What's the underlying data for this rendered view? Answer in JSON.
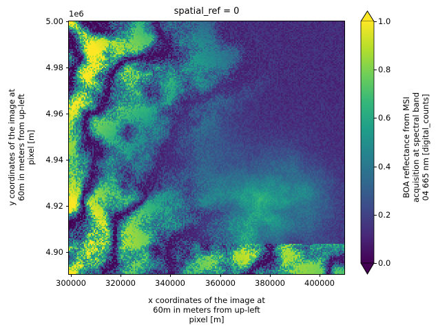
{
  "figure": {
    "title": "spatial_ref = 0",
    "y_offset_text": "1e6"
  },
  "axes": {
    "xlabel_lines": [
      "x coordinates of the image at",
      "60m in meters from up-left",
      "pixel [m]"
    ],
    "ylabel_lines": [
      "y coordinates of the image at",
      "60m in meters from up-left",
      "pixel [m]"
    ],
    "xticks": [
      "300000",
      "320000",
      "340000",
      "360000",
      "380000",
      "400000"
    ],
    "yticks": [
      "5.00",
      "4.98",
      "4.96",
      "4.94",
      "4.92",
      "4.90"
    ]
  },
  "colorbar": {
    "label_lines": [
      "BOA reflectance from MSI",
      "acquisition at spectral band",
      "04 665 nm [digital_counts]"
    ],
    "ticks": [
      "1.0",
      "0.8",
      "0.6",
      "0.4",
      "0.2",
      "0.0"
    ],
    "extend": "both",
    "colormap": "viridis",
    "colors": [
      "#440154",
      "#482878",
      "#3e4989",
      "#31688e",
      "#26828e",
      "#1f9e89",
      "#35b779",
      "#6ece58",
      "#b5de2b",
      "#fde725"
    ]
  },
  "chart_data": {
    "type": "heatmap",
    "title": "spatial_ref = 0",
    "xlabel": "x coordinates of the image at 60m in meters from up-left pixel [m]",
    "ylabel": "y coordinates of the image at 60m in meters from up-left pixel [m]",
    "colorbar_label": "BOA reflectance from MSI acquisition at spectral band 04 665 nm [digital_counts]",
    "xlim": [
      300000,
      409800
    ],
    "ylim": [
      4890200,
      5000000
    ],
    "y_scale_offset": "1e6",
    "xticks": [
      300000,
      320000,
      340000,
      360000,
      380000,
      400000
    ],
    "yticks": [
      4.9,
      4.92,
      4.94,
      4.96,
      4.98,
      5.0
    ],
    "clim": [
      0.0,
      1.0
    ],
    "colorbar_ticks": [
      0.0,
      0.2,
      0.4,
      0.6,
      0.8,
      1.0
    ],
    "colormap": "viridis",
    "pixel_size_m": 60,
    "grid": false,
    "description_regions": [
      {
        "region": "west half (x 300000-360000)",
        "pattern": "bright mountainous terrain, values mostly 0.6-1.0 with dark valleys ~0.1"
      },
      {
        "region": "northeast (x 360000-410000, y 4.94e6-5.00e6)",
        "pattern": "uniform dark, values ~0.05-0.2"
      },
      {
        "region": "southeast (x 370000-400000, y 4.90e6-4.93e6)",
        "pattern": "diffuse clouds/haze, values ~0.3-0.6"
      },
      {
        "region": "south-east corner strip (y < 4.90e6)",
        "pattern": "bright speckled terrain, values ~0.8-1.0"
      }
    ]
  }
}
